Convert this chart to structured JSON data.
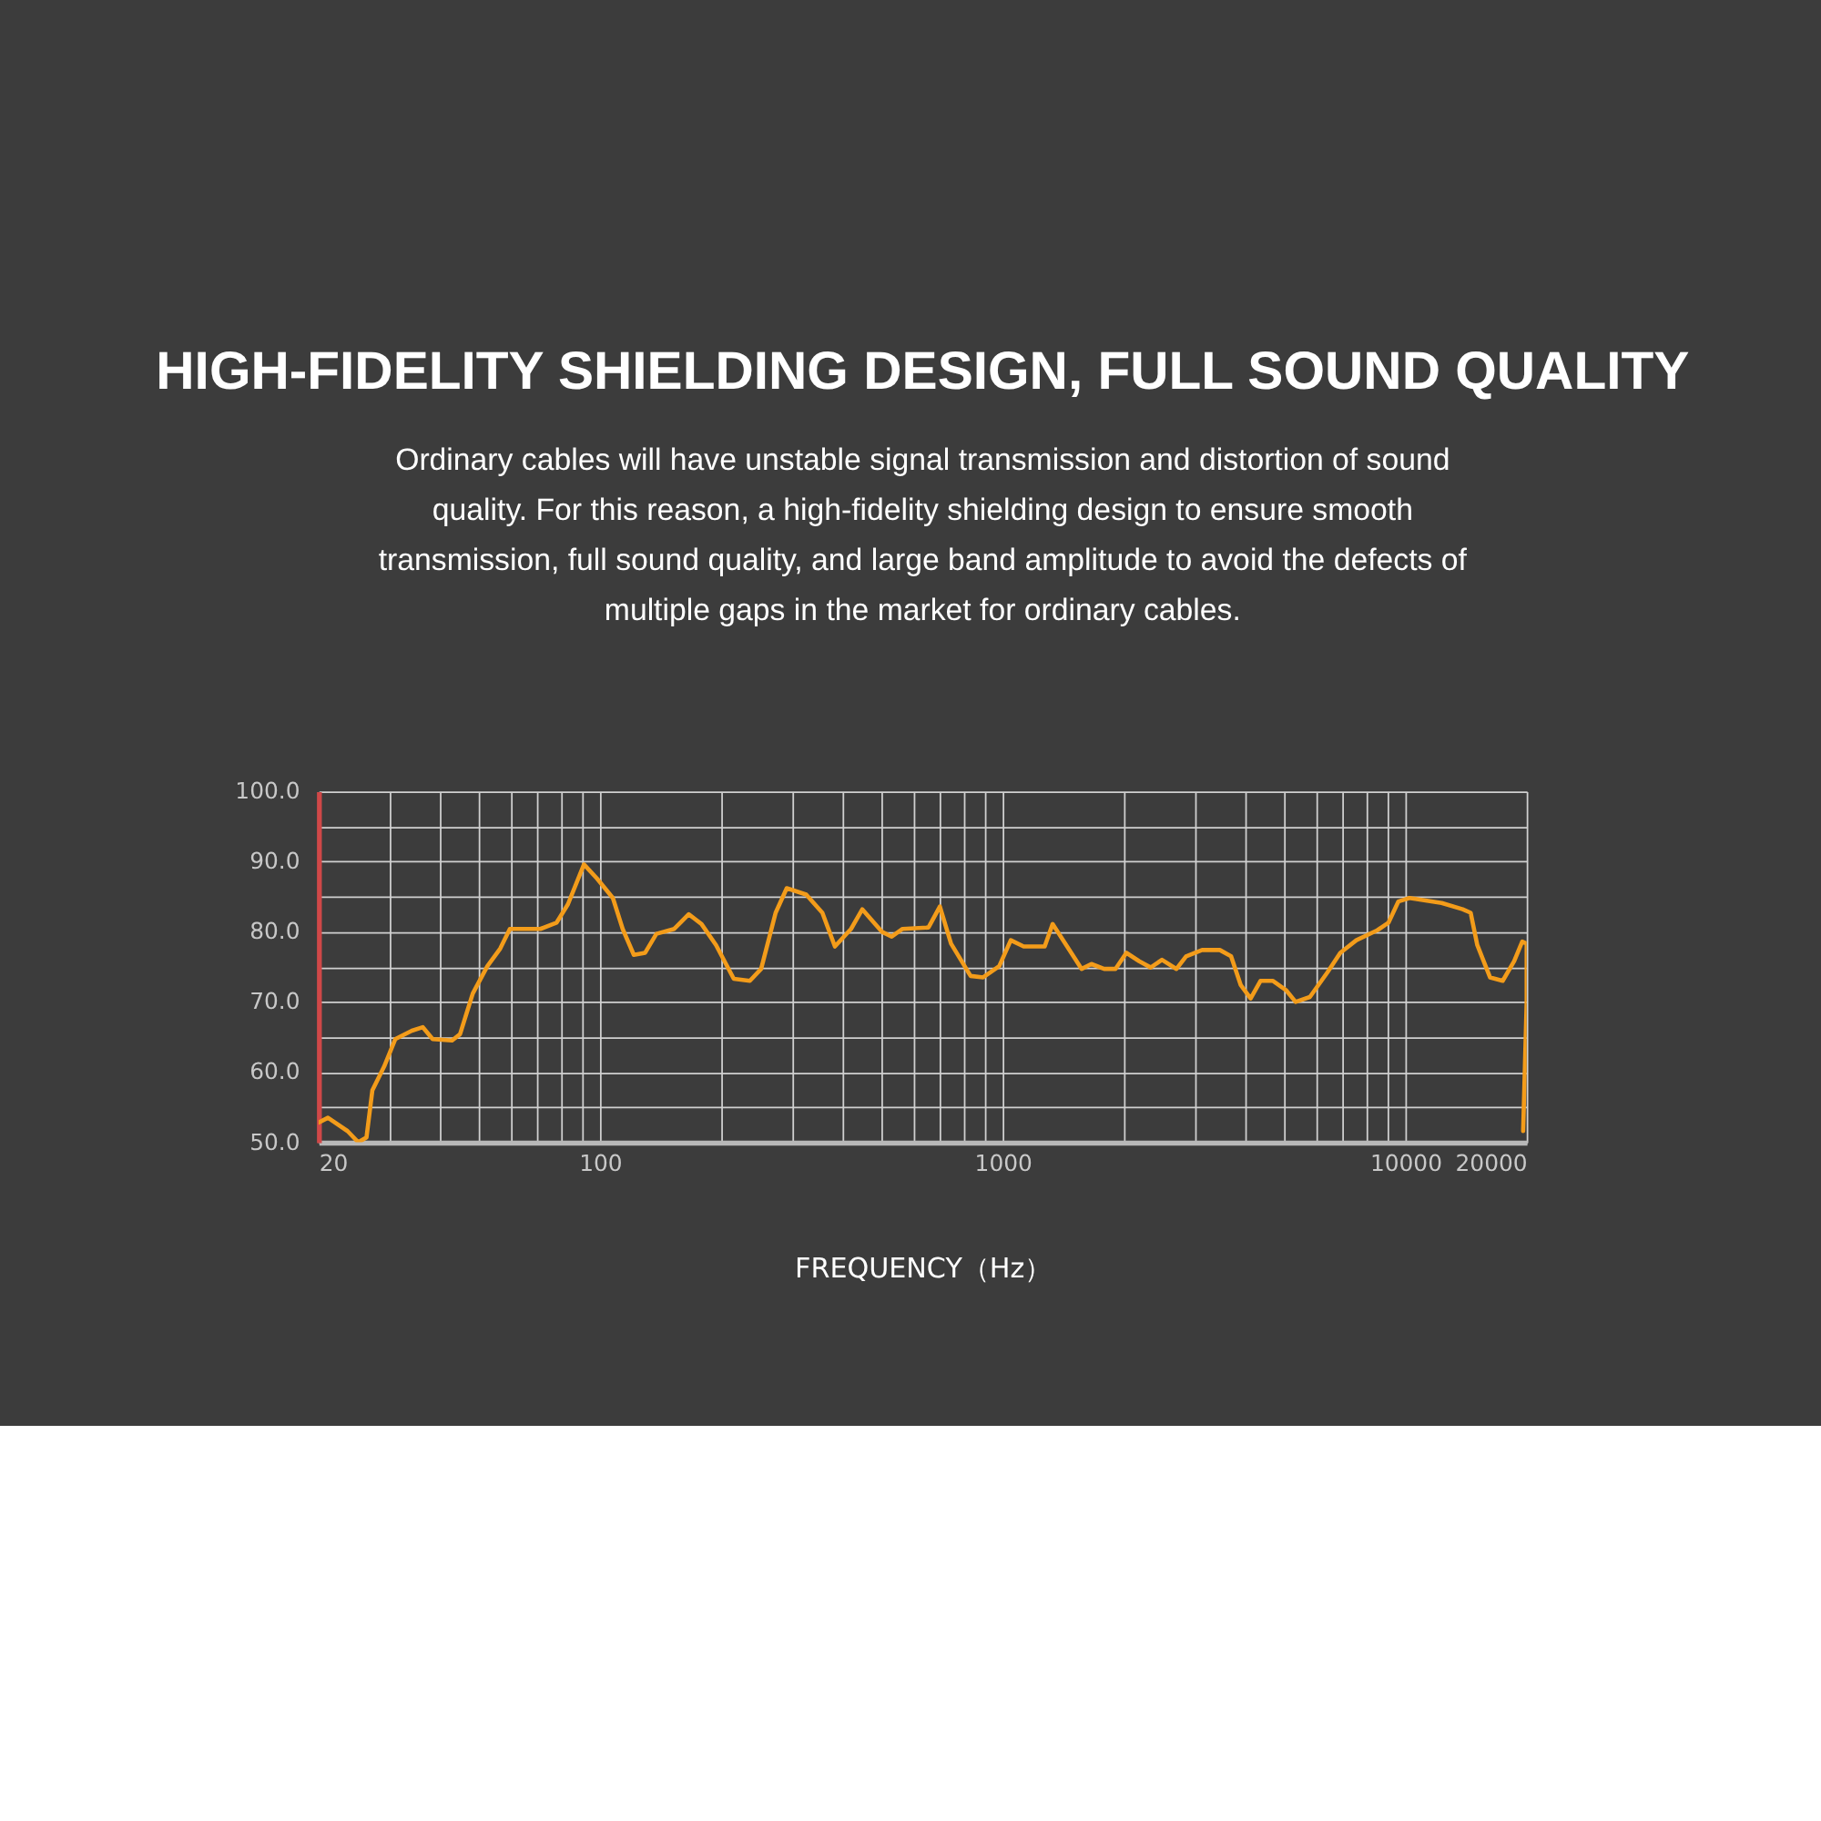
{
  "chart_data": {
    "type": "line",
    "title": "HIGH-FIDELITY SHIELDING DESIGN, FULL SOUND QUALITY",
    "subtitle": "Ordinary cables will have unstable signal transmission and distortion of sound quality. For this reason, a high-fidelity shielding design to ensure smooth transmission, full sound quality, and large band amplitude to avoid the defects of multiple gaps in the market for ordinary cables.",
    "xlabel": "FREQUENCY（Hz）",
    "log": "x",
    "xlim": [
      20,
      20000
    ],
    "ylim": [
      50,
      100
    ],
    "xticks": [
      20,
      {
        "value": 30,
        "label": null
      },
      {
        "value": 40,
        "label": null
      },
      {
        "value": 50,
        "label": null
      },
      {
        "value": 60,
        "label": null
      },
      {
        "value": 70,
        "label": null
      },
      {
        "value": 80,
        "label": null
      },
      {
        "value": 90,
        "label": null
      },
      100,
      {
        "value": 200,
        "label": null
      },
      {
        "value": 300,
        "label": null
      },
      {
        "value": 400,
        "label": null
      },
      {
        "value": 500,
        "label": null
      },
      {
        "value": 600,
        "label": null
      },
      {
        "value": 700,
        "label": null
      },
      {
        "value": 800,
        "label": null
      },
      {
        "value": 900,
        "label": null
      },
      1000,
      {
        "value": 2000,
        "label": null
      },
      {
        "value": 3000,
        "label": null
      },
      {
        "value": 4000,
        "label": null
      },
      {
        "value": 5000,
        "label": null
      },
      {
        "value": 6000,
        "label": null
      },
      {
        "value": 7000,
        "label": null
      },
      {
        "value": 8000,
        "label": null
      },
      {
        "value": 9000,
        "label": null
      },
      10000,
      20000
    ],
    "yticks": [
      {
        "value": 50,
        "label": "50.0"
      },
      {
        "value": 55,
        "label": null
      },
      {
        "value": 60,
        "label": "60.0"
      },
      {
        "value": 65,
        "label": null
      },
      {
        "value": 70,
        "label": "70.0"
      },
      {
        "value": 75,
        "label": null
      },
      {
        "value": 80,
        "label": "80.0"
      },
      {
        "value": 85,
        "label": null
      },
      {
        "value": 90,
        "label": "90.0"
      },
      {
        "value": 95,
        "label": null
      },
      {
        "value": 100,
        "label": "100.0"
      }
    ],
    "grid": true,
    "marker": "none",
    "line_style": "solid",
    "series": [
      {
        "color": "#f39c1a",
        "x": [
          20,
          21.1,
          23.6,
          25.1,
          26.3,
          27.2,
          29.1,
          31.0,
          34.1,
          36.3,
          38.4,
          42.9,
          44.9,
          48.3,
          52.5,
          56.5,
          59.7,
          71.1,
          78.0,
          83.2,
          91.2,
          98.2,
          107.6,
          113.8,
          121.3,
          129.4,
          138.0,
          152.8,
          166.0,
          178.6,
          194.1,
          214.8,
          235.5,
          251.2,
          272.9,
          290.8,
          325,
          356.5,
          383,
          420,
          448,
          501,
          530,
          564,
          654,
          698,
          744,
          832,
          894,
          980,
          1047,
          1127,
          1271,
          1330,
          1445,
          1570,
          1660,
          1786,
          1905,
          2028,
          2183,
          2330,
          2485,
          2700,
          2853,
          3126,
          3460,
          3690,
          3900,
          4126,
          4365,
          4690,
          5047,
          5337,
          5790,
          6400,
          6890,
          7553,
          8510,
          9078,
          9600,
          10232,
          12303,
          13868,
          14520,
          15080,
          16220,
          17440,
          18620,
          19500,
          20000,
          20000,
          19800,
          19600
        ],
        "values": [
          52.8,
          53.5,
          51.6,
          50.0,
          50.7,
          57.4,
          60.8,
          64.7,
          65.9,
          66.4,
          64.7,
          64.5,
          65.4,
          71.2,
          75.1,
          77.6,
          80.4,
          80.4,
          81.3,
          83.9,
          89.6,
          87.6,
          84.8,
          80.4,
          76.7,
          77.0,
          79.7,
          80.4,
          82.5,
          81.1,
          78.1,
          73.3,
          73.0,
          74.7,
          82.7,
          86.2,
          85.3,
          82.7,
          77.9,
          80.4,
          83.2,
          80.0,
          79.3,
          80.4,
          80.6,
          83.6,
          78.3,
          73.7,
          73.5,
          75.1,
          78.8,
          77.9,
          77.9,
          81.1,
          77.9,
          74.7,
          75.4,
          74.7,
          74.7,
          77.0,
          75.8,
          74.9,
          76.0,
          74.7,
          76.5,
          77.4,
          77.4,
          76.5,
          72.4,
          70.5,
          73.0,
          73.0,
          71.7,
          70.0,
          70.7,
          74.2,
          77.0,
          78.8,
          80.2,
          81.3,
          84.3,
          84.8,
          84.1,
          83.2,
          82.7,
          78.1,
          73.5,
          73.0,
          75.8,
          78.6,
          78.3,
          70.0,
          60.8,
          51.6
        ]
      }
    ]
  }
}
